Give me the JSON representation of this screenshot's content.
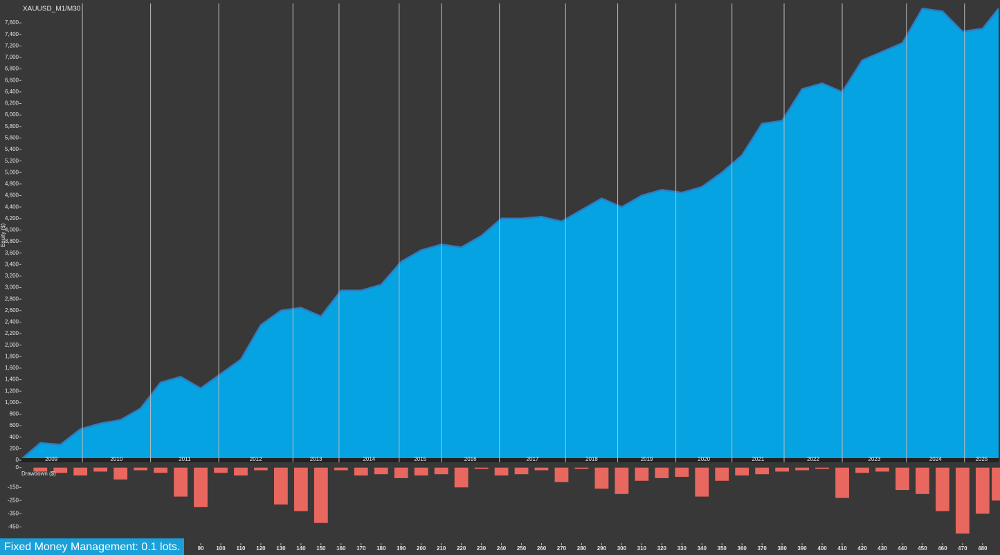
{
  "footer": "Fixed Money Management: 0.1 lots.",
  "chart_data": [
    {
      "type": "area",
      "title": "XAUUSD_M1/M30",
      "ylabel": "Equity ($)",
      "color": "#05a3e2",
      "line_color": "#2f7cc0",
      "xlim": [
        0,
        488
      ],
      "ylim": [
        0,
        7950
      ],
      "x": [
        0,
        10,
        20,
        30,
        40,
        50,
        60,
        70,
        80,
        90,
        100,
        110,
        120,
        130,
        140,
        150,
        160,
        170,
        180,
        190,
        200,
        210,
        220,
        230,
        240,
        250,
        260,
        270,
        280,
        290,
        300,
        310,
        320,
        330,
        340,
        350,
        360,
        370,
        380,
        390,
        400,
        410,
        420,
        430,
        440,
        450,
        460,
        470,
        480,
        488
      ],
      "values": [
        0,
        300,
        270,
        540,
        640,
        700,
        900,
        1350,
        1450,
        1250,
        1500,
        1750,
        2350,
        2600,
        2650,
        2500,
        2950,
        2950,
        3050,
        3450,
        3650,
        3750,
        3700,
        3900,
        4200,
        4200,
        4230,
        4150,
        4350,
        4550,
        4400,
        4600,
        4700,
        4650,
        4750,
        5000,
        5300,
        5850,
        5900,
        6450,
        6550,
        6400,
        6950,
        7100,
        7250,
        7850,
        7800,
        7450,
        7500,
        7850
      ],
      "yticks": [
        0,
        200,
        400,
        600,
        800,
        {
          "value": 1000,
          "label": "1,000"
        },
        {
          "value": 1200,
          "label": "1,200"
        },
        {
          "value": 1400,
          "label": "1,400"
        },
        {
          "value": 1600,
          "label": "1,600"
        },
        {
          "value": 1800,
          "label": "1,800"
        },
        {
          "value": 2000,
          "label": "2,000"
        },
        {
          "value": 2200,
          "label": "2,200"
        },
        {
          "value": 2400,
          "label": "2,400"
        },
        {
          "value": 2600,
          "label": "2,600"
        },
        {
          "value": 2800,
          "label": "2,800"
        },
        {
          "value": 3000,
          "label": "3,000"
        },
        {
          "value": 3200,
          "label": "3,200"
        },
        {
          "value": 3400,
          "label": "3,400"
        },
        {
          "value": 3600,
          "label": "3,600"
        },
        {
          "value": 3800,
          "label": "3,800"
        },
        {
          "value": 4000,
          "label": "4,000"
        },
        {
          "value": 4200,
          "label": "4,200"
        },
        {
          "value": 4400,
          "label": "4,400"
        },
        {
          "value": 4600,
          "label": "4,600"
        },
        {
          "value": 4800,
          "label": "4,800"
        },
        {
          "value": 5000,
          "label": "5,000"
        },
        {
          "value": 5200,
          "label": "5,200"
        },
        {
          "value": 5400,
          "label": "5,400"
        },
        {
          "value": 5600,
          "label": "5,600"
        },
        {
          "value": 5800,
          "label": "5,800"
        },
        {
          "value": 6000,
          "label": "6,000"
        },
        {
          "value": 6200,
          "label": "6,200"
        },
        {
          "value": 6400,
          "label": "6,400"
        },
        {
          "value": 6600,
          "label": "6,600"
        },
        {
          "value": 6800,
          "label": "6,800"
        },
        {
          "value": 7000,
          "label": "7,000"
        },
        {
          "value": 7200,
          "label": "7,200"
        },
        {
          "value": 7400,
          "label": "7,400"
        },
        {
          "value": 7600,
          "label": "7,600"
        }
      ],
      "years": [
        "2009",
        "2010",
        "2011",
        "2012",
        "2013",
        "2014",
        "2015",
        "2016",
        "2017",
        "2018",
        "2019",
        "2020",
        "2021",
        "2022",
        "2023",
        "2024",
        "2025"
      ],
      "year_starts": [
        0,
        31,
        65,
        99,
        136,
        159,
        189,
        210,
        239,
        272,
        298,
        327,
        355,
        381,
        410,
        442,
        471
      ]
    },
    {
      "type": "bar",
      "ylabel": "Drawdown ($)",
      "color": "#e8675e",
      "xlim": [
        0,
        488
      ],
      "ylim": [
        -600,
        30
      ],
      "x": [
        0,
        10,
        20,
        30,
        40,
        50,
        60,
        70,
        80,
        90,
        100,
        110,
        120,
        130,
        140,
        150,
        160,
        170,
        180,
        190,
        200,
        210,
        220,
        230,
        240,
        250,
        260,
        270,
        280,
        290,
        300,
        310,
        320,
        330,
        340,
        350,
        360,
        370,
        380,
        390,
        400,
        410,
        420,
        430,
        440,
        450,
        460,
        470,
        480,
        488
      ],
      "values": [
        0,
        -30,
        -40,
        -60,
        -30,
        -90,
        -20,
        -40,
        -220,
        -300,
        -40,
        -60,
        -20,
        -280,
        -330,
        -420,
        -20,
        -60,
        -50,
        -80,
        -60,
        -50,
        -150,
        -10,
        -60,
        -50,
        -20,
        -110,
        -10,
        -160,
        -200,
        -100,
        -80,
        -70,
        -220,
        -100,
        -60,
        -50,
        -30,
        -20,
        -10,
        -230,
        -40,
        -30,
        -170,
        -200,
        -330,
        -500,
        -350,
        -250
      ],
      "yticks": [
        0,
        -150,
        -250,
        -350,
        -450
      ],
      "xticks": [
        90,
        100,
        110,
        120,
        130,
        140,
        150,
        160,
        170,
        180,
        190,
        200,
        210,
        220,
        230,
        240,
        250,
        260,
        270,
        280,
        290,
        300,
        310,
        320,
        330,
        340,
        350,
        360,
        370,
        380,
        390,
        400,
        410,
        420,
        430,
        440,
        450,
        460,
        470,
        480
      ]
    }
  ]
}
